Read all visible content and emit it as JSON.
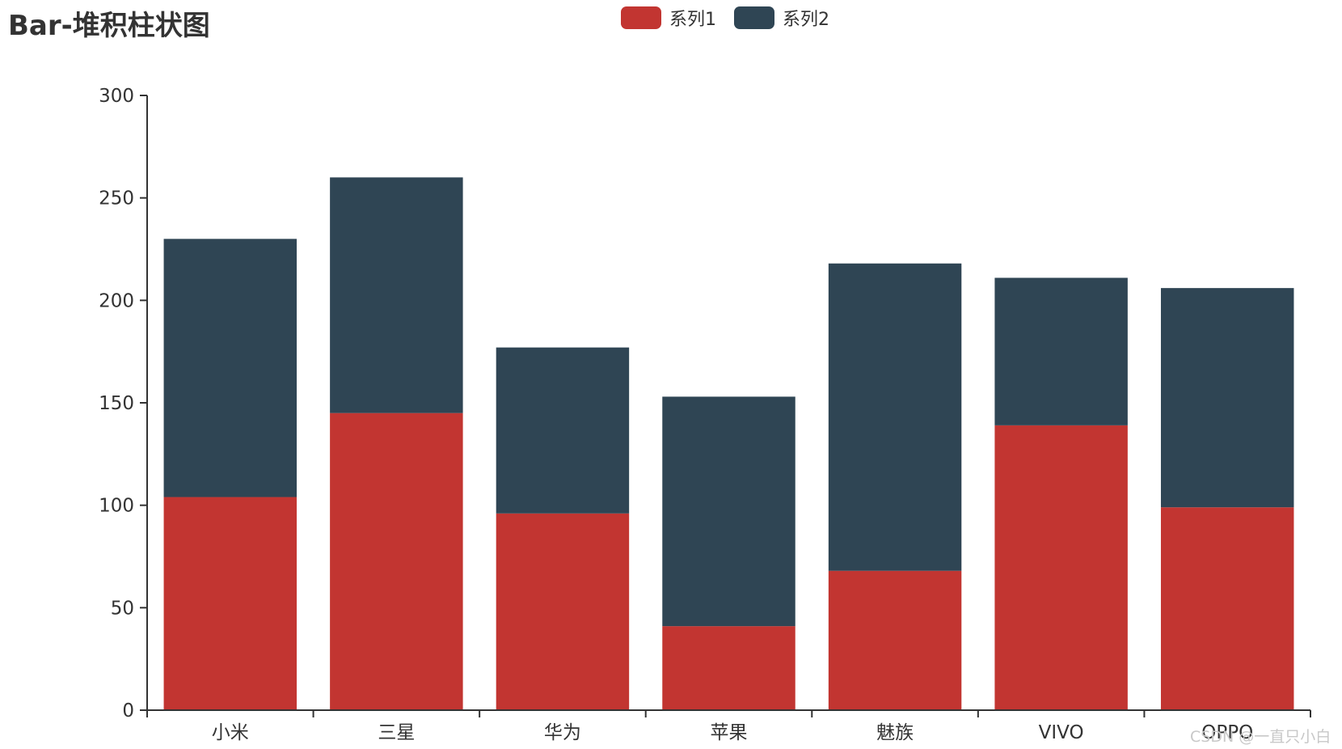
{
  "chart_data": {
    "type": "bar",
    "stacked": true,
    "title": "Bar-堆积柱状图",
    "categories": [
      "小米",
      "三星",
      "华为",
      "苹果",
      "魅族",
      "VIVO",
      "OPPO"
    ],
    "series": [
      {
        "name": "系列1",
        "color": "#c23531",
        "values": [
          104,
          145,
          96,
          41,
          68,
          139,
          99
        ]
      },
      {
        "name": "系列2",
        "color": "#2f4554",
        "values": [
          126,
          115,
          81,
          112,
          150,
          72,
          107
        ]
      }
    ],
    "ylim": [
      0,
      300
    ],
    "yticks": [
      0,
      50,
      100,
      150,
      200,
      250,
      300
    ],
    "grid": false,
    "legend_position": "top-center"
  },
  "watermark": "CSDN @一直只小白"
}
